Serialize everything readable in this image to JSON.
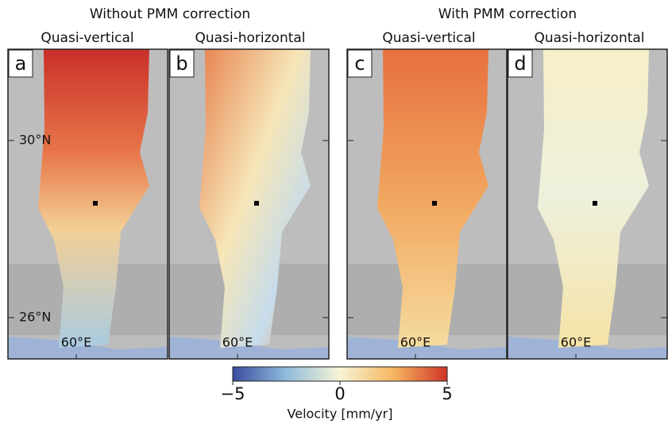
{
  "figure": {
    "groups": [
      {
        "title": "Without PMM correction",
        "panels": [
          {
            "letter": "a",
            "title": "Quasi-vertical"
          },
          {
            "letter": "b",
            "title": "Quasi-horizontal"
          }
        ]
      },
      {
        "title": "With PMM correction",
        "panels": [
          {
            "letter": "c",
            "title": "Quasi-vertical"
          },
          {
            "letter": "d",
            "title": "Quasi-horizontal"
          }
        ]
      }
    ],
    "lat_labels": [
      "30°N",
      "26°N"
    ],
    "lon_label": "60°E",
    "colorbar": {
      "label": "Velocity [mm/yr]",
      "lim": [
        -5,
        5
      ],
      "ticks": [
        {
          "value": -5,
          "label": "−5"
        },
        0,
        5
      ],
      "colors": [
        "#3a4b9f",
        "#8fbcdb",
        "#f7f4d6",
        "#f5b660",
        "#cf3427"
      ]
    }
  }
}
